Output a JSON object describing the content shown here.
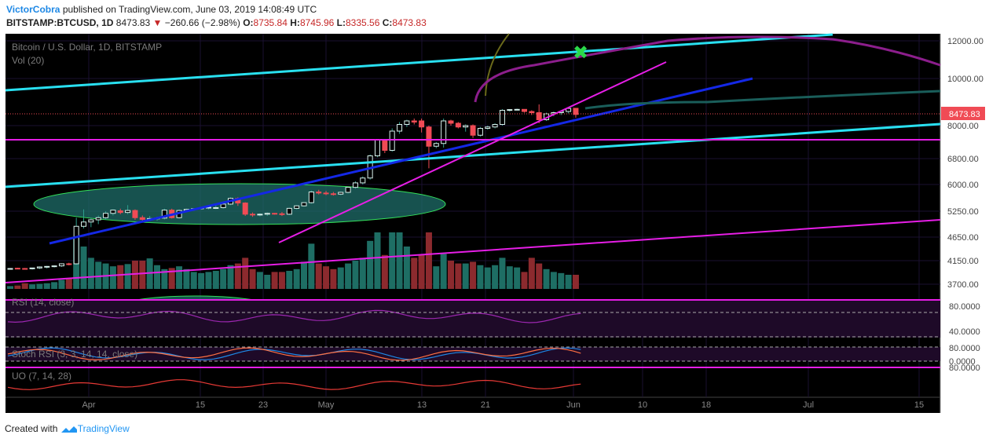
{
  "header": {
    "author": "VictorCobra",
    "published": "published on TradingView.com, June 03, 2019 14:08:49 UTC",
    "symbol": "BITSTAMP:BTCUSD, 1D",
    "last": "8473.83",
    "change": "−260.66 (−2.98%)",
    "o_label": "O:",
    "o": "8735.84",
    "h_label": "H:",
    "h": "8745.96",
    "l_label": "L:",
    "l": "8335.56",
    "c_label": "C:",
    "c": "8473.83"
  },
  "footer": {
    "created_with": "Created with",
    "brand": "TradingView"
  },
  "colors": {
    "background": "#000000",
    "bull": "#2e9e8c",
    "bear": "#f04b55",
    "vol_bull": "#1e6e64",
    "vol_bear": "#8c2a2e",
    "cyan": "#29e0f0",
    "blue": "#1428e6",
    "magenta": "#e61ee6",
    "green_marker": "#2bd94a"
  },
  "chart_data": {
    "type": "candlestick",
    "title": "Bitcoin / U.S. Dollar, 1D, BITSTAMP",
    "volume_label": "Vol (20)",
    "last_price_label": "8473.83",
    "price_ticks": [
      "12000.00",
      "10000.00",
      "8000.00",
      "6800.00",
      "6000.00",
      "5250.00",
      "4650.00",
      "4150.00",
      "3700.00"
    ],
    "x_ticks": [
      "Apr",
      "15",
      "23",
      "May",
      "13",
      "21",
      "Jun",
      "10",
      "18",
      "Jul",
      "15"
    ],
    "ohlc": [
      [
        4000,
        4010,
        3980,
        4000
      ],
      [
        4005,
        4015,
        3990,
        4000
      ],
      [
        4000,
        4010,
        3985,
        3995
      ],
      [
        3995,
        4010,
        3980,
        4010
      ],
      [
        4010,
        4040,
        3990,
        4030
      ],
      [
        4030,
        4050,
        4000,
        4040
      ],
      [
        4040,
        4060,
        4020,
        4050
      ],
      [
        4050,
        4100,
        4030,
        4090
      ],
      [
        4090,
        4110,
        4060,
        4080
      ],
      [
        4090,
        5100,
        4070,
        4900
      ],
      [
        4900,
        5300,
        4850,
        5000
      ],
      [
        5000,
        5100,
        4880,
        5050
      ],
      [
        5050,
        5150,
        4950,
        5100
      ],
      [
        5100,
        5250,
        5050,
        5200
      ],
      [
        5200,
        5300,
        5150,
        5280
      ],
      [
        5260,
        5320,
        5180,
        5220
      ],
      [
        5220,
        5420,
        5180,
        5270
      ],
      [
        5270,
        5300,
        5050,
        5100
      ],
      [
        5100,
        5150,
        5000,
        5060
      ],
      [
        5060,
        5140,
        5020,
        5080
      ],
      [
        5080,
        5120,
        5030,
        5090
      ],
      [
        5090,
        5320,
        5060,
        5280
      ],
      [
        5280,
        5320,
        5080,
        5100
      ],
      [
        5100,
        5300,
        5080,
        5270
      ],
      [
        5270,
        5320,
        5230,
        5300
      ],
      [
        5300,
        5330,
        5260,
        5320
      ],
      [
        5320,
        5350,
        5290,
        5340
      ],
      [
        5340,
        5380,
        5300,
        5360
      ],
      [
        5350,
        5420,
        5310,
        5350
      ],
      [
        5350,
        5470,
        5320,
        5450
      ],
      [
        5450,
        5640,
        5420,
        5610
      ],
      [
        5610,
        5640,
        5400,
        5480
      ],
      [
        5480,
        5500,
        5140,
        5180
      ],
      [
        5180,
        5220,
        5120,
        5170
      ],
      [
        5170,
        5200,
        5130,
        5180
      ],
      [
        5180,
        5220,
        5140,
        5200
      ],
      [
        5200,
        5210,
        5170,
        5190
      ],
      [
        5190,
        5230,
        5140,
        5180
      ],
      [
        5180,
        5350,
        5160,
        5330
      ],
      [
        5330,
        5420,
        5300,
        5400
      ],
      [
        5400,
        5500,
        5380,
        5490
      ],
      [
        5490,
        5830,
        5460,
        5790
      ],
      [
        5790,
        5850,
        5720,
        5760
      ],
      [
        5760,
        5820,
        5700,
        5740
      ],
      [
        5740,
        5790,
        5690,
        5730
      ],
      [
        5730,
        5800,
        5700,
        5780
      ],
      [
        5780,
        5930,
        5750,
        5920
      ],
      [
        5920,
        6100,
        5880,
        6050
      ],
      [
        6050,
        6250,
        6000,
        6200
      ],
      [
        6200,
        6950,
        6150,
        6900
      ],
      [
        6900,
        7500,
        6850,
        7500
      ],
      [
        7500,
        7500,
        7000,
        7100
      ],
      [
        7100,
        7900,
        7050,
        7800
      ],
      [
        7800,
        8150,
        7700,
        8050
      ],
      [
        8050,
        8250,
        7950,
        8200
      ],
      [
        8200,
        8300,
        8050,
        8150
      ],
      [
        8200,
        8300,
        7750,
        7950
      ],
      [
        7950,
        8000,
        6500,
        7250
      ],
      [
        7250,
        7400,
        7180,
        7350
      ],
      [
        7350,
        8300,
        7200,
        8200
      ],
      [
        8200,
        8250,
        8000,
        8100
      ],
      [
        8100,
        8150,
        7900,
        7950
      ],
      [
        7950,
        8050,
        7780,
        8000
      ],
      [
        8000,
        8050,
        7550,
        7650
      ],
      [
        7650,
        7950,
        7600,
        7900
      ],
      [
        7900,
        8000,
        7850,
        7950
      ],
      [
        7950,
        8100,
        7900,
        8050
      ],
      [
        8050,
        8700,
        8000,
        8650
      ],
      [
        8650,
        8700,
        8600,
        8680
      ],
      [
        8680,
        8720,
        8650,
        8690
      ],
      [
        8690,
        8700,
        8550,
        8600
      ],
      [
        8600,
        8650,
        8450,
        8550
      ],
      [
        8550,
        8900,
        8100,
        8250
      ],
      [
        8250,
        8550,
        8200,
        8500
      ],
      [
        8500,
        8600,
        8400,
        8550
      ],
      [
        8550,
        8650,
        8450,
        8600
      ],
      [
        8600,
        8750,
        8520,
        8730
      ],
      [
        8735.84,
        8745.96,
        8335.56,
        8473.83
      ]
    ],
    "volume": [
      0.05,
      0.06,
      0.1,
      0.08,
      0.09,
      0.1,
      0.12,
      0.16,
      0.18,
      0.9,
      0.75,
      0.55,
      0.48,
      0.45,
      0.4,
      0.42,
      0.44,
      0.5,
      0.5,
      0.54,
      0.42,
      0.35,
      0.37,
      0.4,
      0.35,
      0.3,
      0.28,
      0.3,
      0.32,
      0.35,
      0.42,
      0.45,
      0.55,
      0.35,
      0.3,
      0.25,
      0.3,
      0.3,
      0.32,
      0.35,
      0.48,
      0.8,
      0.45,
      0.4,
      0.35,
      0.38,
      0.45,
      0.5,
      0.55,
      0.85,
      1.0,
      0.6,
      1.0,
      1.0,
      0.75,
      0.55,
      0.6,
      1.0,
      0.4,
      0.62,
      0.5,
      0.45,
      0.45,
      0.48,
      0.42,
      0.38,
      0.42,
      0.55,
      0.4,
      0.38,
      0.3,
      0.55,
      0.45,
      0.35,
      0.3,
      0.28,
      0.25,
      0.25
    ],
    "series": [
      {
        "name": "RSI (14, close)",
        "type": "line",
        "levels": [
          "80.0000",
          "40.0000"
        ]
      },
      {
        "name": "Stoch RSI (3, 3, 14, 14, close)",
        "type": "line",
        "levels": [
          "80.0000",
          "0.0000"
        ]
      },
      {
        "name": "UO (7, 14, 28)",
        "type": "line",
        "levels": [
          "80.0000"
        ]
      }
    ]
  }
}
